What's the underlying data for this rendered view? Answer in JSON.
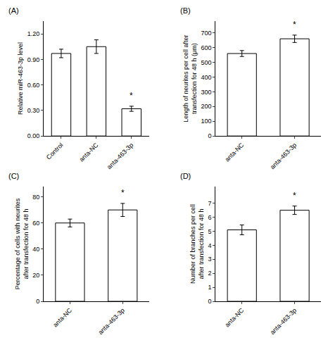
{
  "chart_data": [
    {
      "type": "bar",
      "title": "(A)",
      "categories": [
        "Control",
        "anta-NC",
        "anta-463-3p"
      ],
      "values": [
        0.97,
        1.05,
        0.32
      ],
      "errors": [
        0.05,
        0.08,
        0.03
      ],
      "ylabel": "Relative miR-463-3p level",
      "ylim": [
        0,
        1.35
      ],
      "yticks": [
        {
          "value": 0.0,
          "label": "0.00"
        },
        {
          "value": 0.3,
          "label": "0.30"
        },
        {
          "value": 0.6,
          "label": "0.60"
        },
        {
          "value": 0.9,
          "label": "0.90"
        },
        {
          "value": 1.2,
          "label": "1.20"
        }
      ],
      "annotations": [
        {
          "x": "anta-463-3p",
          "text": "*"
        }
      ],
      "color": "#ffffff",
      "grid": false
    },
    {
      "type": "bar",
      "title": "(B)",
      "categories": [
        "anta-NC",
        "anta-463-3p"
      ],
      "values": [
        560,
        660
      ],
      "errors": [
        20,
        25
      ],
      "ylabel": "Length of neurites per cell after\ntransfection for 48 h (μm)",
      "ylim": [
        0,
        780
      ],
      "yticks": [
        0,
        100,
        200,
        300,
        400,
        500,
        600,
        700
      ],
      "annotations": [
        {
          "x": "anta-463-3p",
          "text": "*"
        }
      ],
      "color": "#ffffff",
      "grid": false
    },
    {
      "type": "bar",
      "title": "(C)",
      "categories": [
        "anta-NC",
        "anta-463-3p"
      ],
      "values": [
        60,
        70
      ],
      "errors": [
        3,
        5
      ],
      "ylabel": "Percentage of cells with neurites\nafter transfection for 48 h",
      "ylim": [
        0,
        88
      ],
      "yticks": [
        0,
        20,
        40,
        60,
        80
      ],
      "annotations": [
        {
          "x": "anta-463-3p",
          "text": "*"
        }
      ],
      "color": "#ffffff",
      "grid": false
    },
    {
      "type": "bar",
      "title": "(D)",
      "categories": [
        "anta-NC",
        "anta-463-3p"
      ],
      "values": [
        5.1,
        6.5
      ],
      "errors": [
        0.35,
        0.3
      ],
      "ylabel": "Number of branches per cell\nafter transfection for 48 h",
      "ylim": [
        0,
        8.2
      ],
      "yticks": [
        0,
        1,
        2,
        3,
        4,
        5,
        6,
        7
      ],
      "annotations": [
        {
          "x": "anta-463-3p",
          "text": "*"
        }
      ],
      "color": "#ffffff",
      "grid": false
    }
  ]
}
